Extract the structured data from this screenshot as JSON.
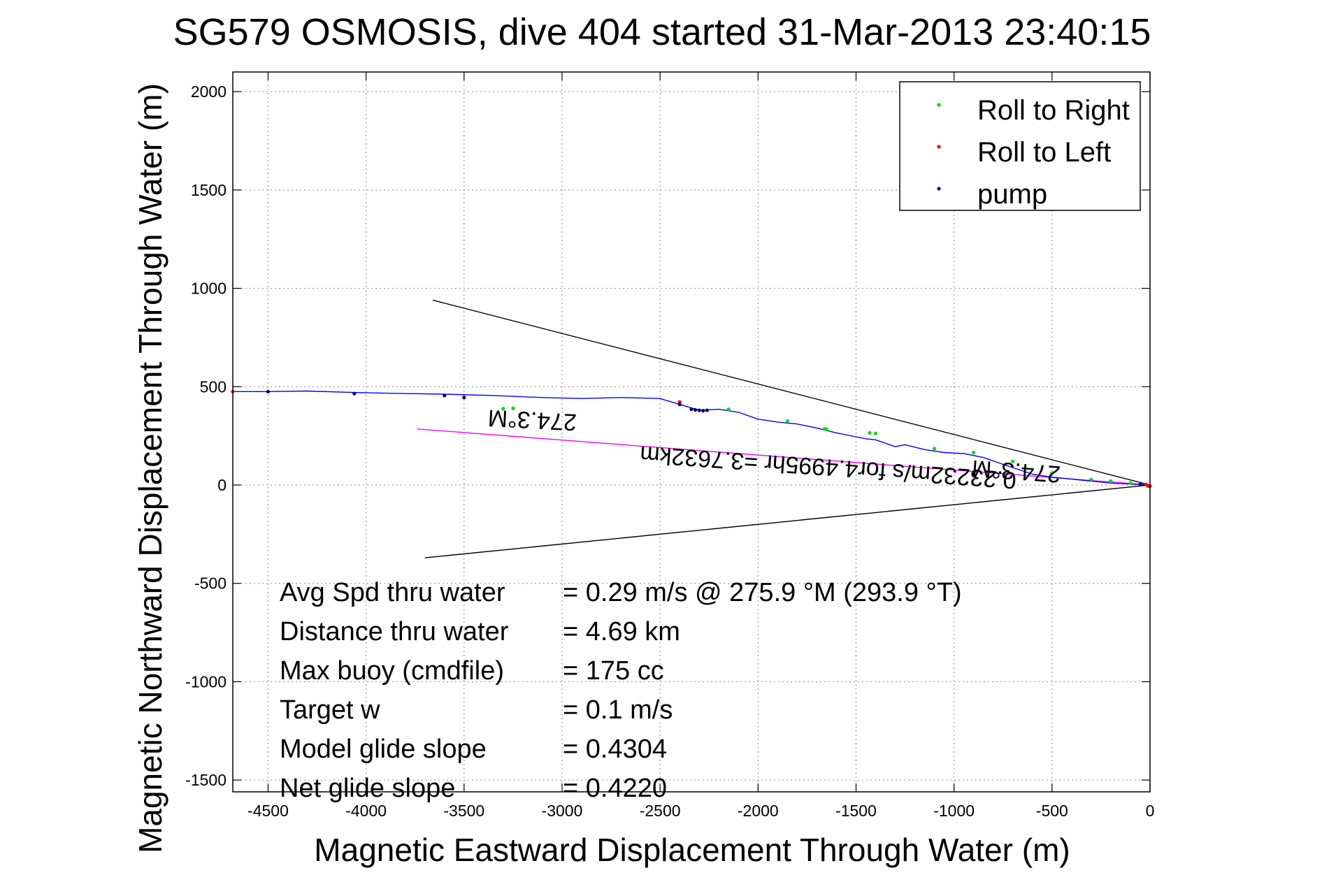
{
  "chart_data": {
    "type": "scatter",
    "title": "SG579 OSMOSIS, dive 404 started 31-Mar-2013 23:40:15",
    "xlabel": "Magnetic Eastward Displacement Through Water (m)",
    "ylabel": "Magnetic Northward Displacement Through Water (m)",
    "xlim": [
      -4680,
      0
    ],
    "ylim": [
      -1560,
      2100
    ],
    "grid": true,
    "xticks": [
      -4500,
      -4000,
      -3500,
      -3000,
      -2500,
      -2000,
      -1500,
      -1000,
      -500,
      0
    ],
    "yticks": [
      2000,
      1500,
      1000,
      500,
      0,
      -500,
      -1000,
      -1500
    ],
    "legend": {
      "position": "top-right",
      "entries": [
        {
          "label": "Roll to Right",
          "color": "#00dd00"
        },
        {
          "label": "Roll to Left",
          "color": "#ff0000"
        },
        {
          "label": "pump",
          "color": "#000080"
        }
      ]
    },
    "series": [
      {
        "name": "track",
        "color": "#0000ff",
        "x": [
          -4680,
          -4500,
          -4300,
          -4050,
          -3800,
          -3600,
          -3350,
          -3100,
          -2900,
          -2700,
          -2500,
          -2400,
          -2300,
          -2200,
          -2100,
          -2000,
          -1900,
          -1800,
          -1700,
          -1600,
          -1500,
          -1450,
          -1400,
          -1300,
          -1250,
          -1150,
          -1050,
          -950,
          -850,
          -750,
          -600,
          -500,
          -400,
          -300,
          -200,
          -100,
          0
        ],
        "y": [
          475,
          475,
          478,
          470,
          465,
          462,
          455,
          445,
          440,
          445,
          440,
          410,
          380,
          385,
          370,
          335,
          320,
          310,
          290,
          265,
          245,
          235,
          230,
          195,
          205,
          180,
          165,
          160,
          140,
          105,
          55,
          40,
          30,
          20,
          10,
          5,
          0
        ]
      },
      {
        "name": "Roll to Right",
        "color": "#00dd00",
        "x": [
          -3300,
          -3250,
          -2150,
          -1850,
          -1660,
          -1650,
          -1430,
          -1400,
          -1100,
          -900,
          -700,
          -500,
          -300,
          -200,
          -100
        ],
        "y": [
          388,
          390,
          385,
          325,
          285,
          283,
          265,
          262,
          185,
          165,
          120,
          60,
          28,
          20,
          10
        ]
      },
      {
        "name": "Roll to Left",
        "color": "#ff0000",
        "x": [
          -4680,
          -2400,
          -20,
          -10,
          0
        ],
        "y": [
          475,
          422,
          2,
          -5,
          -5
        ]
      },
      {
        "name": "pump",
        "color": "#000080",
        "x": [
          -4500,
          -4060,
          -3600,
          -3500,
          -2400,
          -2340,
          -2320,
          -2300,
          -2280,
          -2260,
          -50
        ],
        "y": [
          475,
          465,
          455,
          445,
          410,
          385,
          382,
          380,
          378,
          380,
          2
        ]
      }
    ],
    "lines": [
      {
        "name": "cone-upper",
        "color": "#000000",
        "x": [
          -3660,
          0
        ],
        "y": [
          940,
          0
        ]
      },
      {
        "name": "cone-lower",
        "color": "#000000",
        "x": [
          -3700,
          0
        ],
        "y": [
          -370,
          0
        ]
      },
      {
        "name": "net-heading",
        "color": "#ff00ff",
        "x": [
          -3740,
          0
        ],
        "y": [
          285,
          0
        ]
      }
    ],
    "annotations": [
      {
        "text": "274.3°M",
        "x": -3150,
        "y": 370,
        "angle": 183
      },
      {
        "text": "0.23232m/s for4.4995hr =3.7632km",
        "x": -1640,
        "y": 130,
        "angle": 184
      },
      {
        "text": "274.3°M",
        "x": -680,
        "y": 110,
        "angle": 184
      }
    ],
    "stats": [
      {
        "label": "Avg Spd thru water",
        "value": "=  0.29 m/s @ 275.9 °M (293.9 °T)"
      },
      {
        "label": "Distance thru water",
        "value": "=  4.69 km"
      },
      {
        "label": "Max buoy (cmdfile)",
        "value": "= 175 cc"
      },
      {
        "label": "Target w",
        "value": "= 0.1 m/s"
      },
      {
        "label": "Model glide slope",
        "value": "= 0.4304"
      },
      {
        "label": "Net glide slope",
        "value": "= 0.4220"
      }
    ]
  }
}
